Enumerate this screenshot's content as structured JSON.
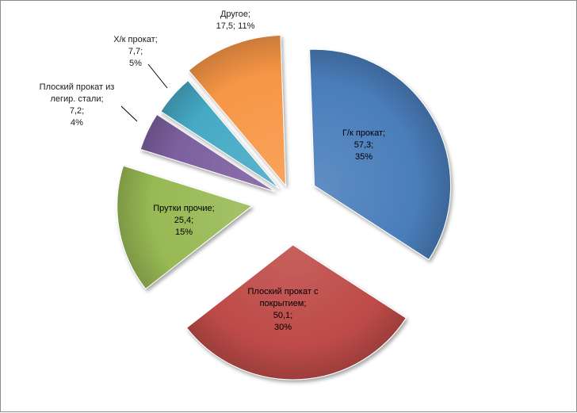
{
  "chart_data": {
    "type": "pie",
    "exploded": true,
    "series": [
      {
        "values": [
          57.3,
          50.1,
          25.4,
          7.2,
          7.7,
          17.5
        ],
        "categories": [
          "Г/к прокат",
          "Плоский прокат с покрытием",
          "Прутки прочие",
          "Плоский прокат из легир. стали",
          "Х/к прокат",
          "Другое"
        ]
      }
    ],
    "slices": [
      {
        "label_lines": [
          "Г/к прокат;",
          "57,3;",
          "35%"
        ],
        "value": 57.3,
        "percent": 35,
        "color": "#4a7ebb"
      },
      {
        "label_lines": [
          "Плоский прокат с",
          "покрытием;",
          "50,1;",
          "30%"
        ],
        "value": 50.1,
        "percent": 30,
        "color": "#be4b48"
      },
      {
        "label_lines": [
          "Прутки прочие;",
          "25,4;",
          "15%"
        ],
        "value": 25.4,
        "percent": 15,
        "color": "#98b954"
      },
      {
        "label_lines": [
          "Плоский прокат из",
          "легир. стали;",
          "7,2;",
          "4%"
        ],
        "value": 7.2,
        "percent": 4,
        "color": "#7d60a0"
      },
      {
        "label_lines": [
          "Х/к прокат;",
          "7,7;",
          "5%"
        ],
        "value": 7.7,
        "percent": 5,
        "color": "#46aac5"
      },
      {
        "label_lines": [
          "Другое;",
          "17,5; 11%"
        ],
        "value": 17.5,
        "percent": 11,
        "color": "#f79646"
      }
    ],
    "legend": "none"
  }
}
